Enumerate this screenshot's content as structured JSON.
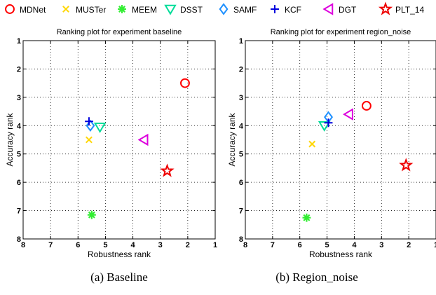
{
  "legend": [
    {
      "name": "MDNet",
      "marker": "circle",
      "color": "#ff0000"
    },
    {
      "name": "MUSTer",
      "marker": "x",
      "color": "#ffd700"
    },
    {
      "name": "MEEM",
      "marker": "asterisk",
      "color": "#33ee33"
    },
    {
      "name": "DSST",
      "marker": "triangle-down",
      "color": "#00dd99"
    },
    {
      "name": "SAMF",
      "marker": "diamond",
      "color": "#1e90ff"
    },
    {
      "name": "KCF",
      "marker": "plus",
      "color": "#0000dd"
    },
    {
      "name": "DGT",
      "marker": "triangle-left",
      "color": "#dd00dd"
    },
    {
      "name": "PLT_14",
      "marker": "star",
      "color": "#ee0000"
    }
  ],
  "captions": {
    "a": "(a) Baseline",
    "b": "(b) Region_noise"
  },
  "chart_data": [
    {
      "type": "scatter",
      "title": "Ranking plot for experiment baseline",
      "xlabel": "Robustness rank",
      "ylabel": "Accuracy rank",
      "xlim": [
        8,
        1
      ],
      "ylim": [
        8,
        1
      ],
      "x_reversed": true,
      "y_reversed": true,
      "grid": true,
      "xticks": [
        "8",
        "7",
        "6",
        "5",
        "4",
        "3",
        "2",
        "1"
      ],
      "yticks": [
        "1",
        "2",
        "3",
        "4",
        "5",
        "6",
        "7",
        "8"
      ],
      "points": [
        {
          "series": "MDNet",
          "x": 2.1,
          "y": 2.5
        },
        {
          "series": "MUSTer",
          "x": 5.6,
          "y": 4.5
        },
        {
          "series": "MEEM",
          "x": 5.5,
          "y": 7.15
        },
        {
          "series": "DSST",
          "x": 5.2,
          "y": 4.05
        },
        {
          "series": "SAMF",
          "x": 5.55,
          "y": 4.0
        },
        {
          "series": "KCF",
          "x": 5.6,
          "y": 3.85
        },
        {
          "series": "DGT",
          "x": 3.6,
          "y": 4.5
        },
        {
          "series": "PLT_14",
          "x": 2.75,
          "y": 5.6
        }
      ]
    },
    {
      "type": "scatter",
      "title": "Ranking plot for experiment region_noise",
      "xlabel": "Robustness rank",
      "ylabel": "Accuracy rank",
      "xlim": [
        8,
        1
      ],
      "ylim": [
        8,
        1
      ],
      "x_reversed": true,
      "y_reversed": true,
      "grid": true,
      "xticks": [
        "8",
        "7",
        "6",
        "5",
        "4",
        "3",
        "2",
        "1"
      ],
      "yticks": [
        "1",
        "2",
        "3",
        "4",
        "5",
        "6",
        "7",
        "8"
      ],
      "points": [
        {
          "series": "MDNet",
          "x": 3.55,
          "y": 3.3
        },
        {
          "series": "MUSTer",
          "x": 5.55,
          "y": 4.65
        },
        {
          "series": "MEEM",
          "x": 5.75,
          "y": 7.25
        },
        {
          "series": "DSST",
          "x": 5.1,
          "y": 4.0
        },
        {
          "series": "SAMF",
          "x": 4.95,
          "y": 3.7
        },
        {
          "series": "KCF",
          "x": 4.95,
          "y": 3.9
        },
        {
          "series": "DGT",
          "x": 4.2,
          "y": 3.6
        },
        {
          "series": "PLT_14",
          "x": 2.1,
          "y": 5.4
        }
      ]
    }
  ]
}
